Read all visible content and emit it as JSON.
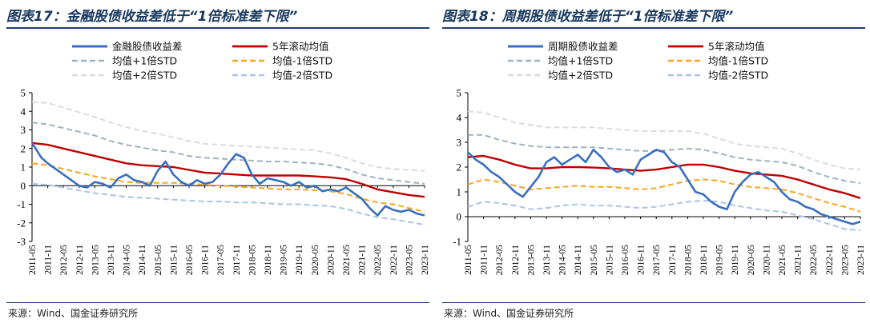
{
  "source_label": "来源：Wind、国金证券研究所",
  "legend_labels": {
    "mean_plus_1std": "均值+1倍STD",
    "mean_minus_1std": "均值-1倍STD",
    "mean_plus_2std": "均值+2倍STD",
    "mean_minus_2std": "均值-2倍STD",
    "rolling_mean": "5年滚动均值"
  },
  "colors": {
    "spread": "#3a6fbf",
    "rolling_mean": "#c00000",
    "plus_1std": "#9fb2c2",
    "minus_1std": "#f5a623",
    "plus_2std": "#dcdcdc",
    "minus_2std": "#a9c4ea"
  },
  "chart_data": [
    {
      "type": "line",
      "title": "图表17：金融股债收益差低于“1倍标准差下限”",
      "spread_name": "金融股债收益差",
      "ylim": [
        -3,
        5
      ],
      "y_ticks": [
        -3,
        -2,
        -1,
        0,
        1,
        2,
        3,
        4,
        5
      ],
      "x_ticks": [
        "2011-05",
        "2011-11",
        "2012-05",
        "2012-11",
        "2013-05",
        "2013-11",
        "2014-05",
        "2014-11",
        "2015-05",
        "2015-11",
        "2016-05",
        "2016-11",
        "2017-05",
        "2017-11",
        "2018-05",
        "2018-11",
        "2019-05",
        "2019-11",
        "2020-05",
        "2020-11",
        "2021-05",
        "2021-11",
        "2022-05",
        "2022-11",
        "2023-05",
        "2023-11"
      ],
      "legend_placement": "top",
      "series": [
        {
          "key": "spread",
          "x": [
            0,
            0.3,
            0.6,
            1,
            1.5,
            2,
            2.5,
            3,
            3.5,
            4,
            4.5,
            5,
            5.5,
            6,
            6.5,
            7,
            7.5,
            8,
            8.5,
            9,
            9.5,
            10,
            10.5,
            11,
            11.5,
            12,
            12.5,
            13,
            13.5,
            14,
            14.5,
            15,
            15.5,
            16,
            16.5,
            17,
            17.5,
            18,
            18.5,
            19,
            19.5,
            20,
            20.5,
            21,
            21.5,
            22,
            22.5,
            23,
            23.5,
            24,
            24.5,
            25
          ],
          "values": [
            2.3,
            1.9,
            1.5,
            1.2,
            0.9,
            0.6,
            0.3,
            0.0,
            -0.1,
            0.2,
            0.1,
            -0.1,
            0.4,
            0.6,
            0.3,
            0.2,
            0.0,
            0.8,
            1.3,
            0.6,
            0.2,
            0.0,
            0.3,
            0.1,
            0.2,
            0.6,
            1.2,
            1.7,
            1.5,
            0.6,
            0.1,
            0.4,
            0.3,
            0.2,
            0.0,
            0.2,
            -0.1,
            0.0,
            -0.3,
            -0.2,
            -0.3,
            -0.1,
            -0.4,
            -0.7,
            -1.2,
            -1.6,
            -1.1,
            -1.3,
            -1.4,
            -1.3,
            -1.5,
            -1.6
          ]
        },
        {
          "key": "rolling_mean",
          "x": [
            0,
            1,
            2,
            3,
            4,
            5,
            6,
            7,
            8,
            9,
            10,
            11,
            12,
            13,
            14,
            15,
            16,
            17,
            18,
            19,
            20,
            21,
            22,
            23,
            24,
            25
          ],
          "values": [
            2.3,
            2.2,
            2.0,
            1.8,
            1.6,
            1.4,
            1.2,
            1.1,
            1.05,
            1.0,
            0.85,
            0.7,
            0.65,
            0.6,
            0.55,
            0.55,
            0.55,
            0.55,
            0.5,
            0.45,
            0.35,
            0.1,
            -0.2,
            -0.35,
            -0.5,
            -0.6
          ]
        },
        {
          "key": "plus_1std",
          "x": [
            0,
            1,
            2,
            3,
            4,
            5,
            6,
            7,
            8,
            9,
            10,
            11,
            12,
            13,
            14,
            15,
            16,
            17,
            18,
            19,
            20,
            21,
            22,
            23,
            24,
            25
          ],
          "values": [
            3.4,
            3.3,
            3.1,
            2.9,
            2.7,
            2.4,
            2.2,
            2.05,
            1.9,
            1.8,
            1.6,
            1.5,
            1.45,
            1.4,
            1.35,
            1.3,
            1.3,
            1.25,
            1.2,
            1.1,
            0.9,
            0.6,
            0.4,
            0.3,
            0.2,
            0.1
          ]
        },
        {
          "key": "minus_1std",
          "x": [
            0,
            1,
            2,
            3,
            4,
            5,
            6,
            7,
            8,
            9,
            10,
            11,
            12,
            13,
            14,
            15,
            16,
            17,
            18,
            19,
            20,
            21,
            22,
            23,
            24,
            25
          ],
          "values": [
            1.2,
            1.1,
            0.9,
            0.7,
            0.5,
            0.35,
            0.2,
            0.15,
            0.15,
            0.15,
            0.1,
            0.05,
            0.0,
            -0.05,
            -0.1,
            -0.15,
            -0.2,
            -0.2,
            -0.25,
            -0.3,
            -0.45,
            -0.7,
            -0.9,
            -1.0,
            -1.2,
            -1.4
          ]
        },
        {
          "key": "plus_2std",
          "x": [
            0,
            1,
            2,
            3,
            4,
            5,
            6,
            7,
            8,
            9,
            10,
            11,
            12,
            13,
            14,
            15,
            16,
            17,
            18,
            19,
            20,
            21,
            22,
            23,
            24,
            25
          ],
          "values": [
            4.5,
            4.45,
            4.2,
            3.95,
            3.7,
            3.4,
            3.15,
            2.95,
            2.8,
            2.6,
            2.4,
            2.25,
            2.2,
            2.15,
            2.1,
            2.05,
            2.0,
            1.95,
            1.9,
            1.75,
            1.5,
            1.2,
            1.0,
            0.9,
            0.85,
            0.8
          ]
        },
        {
          "key": "minus_2std",
          "x": [
            0,
            1,
            2,
            3,
            4,
            5,
            6,
            7,
            8,
            9,
            10,
            11,
            12,
            13,
            14,
            15,
            16,
            17,
            18,
            19,
            20,
            21,
            22,
            23,
            24,
            25
          ],
          "values": [
            0.1,
            0.05,
            -0.1,
            -0.25,
            -0.4,
            -0.5,
            -0.6,
            -0.65,
            -0.7,
            -0.75,
            -0.8,
            -0.85,
            -0.85,
            -0.9,
            -0.9,
            -0.95,
            -1.0,
            -1.0,
            -1.05,
            -1.1,
            -1.25,
            -1.5,
            -1.7,
            -1.8,
            -1.95,
            -2.1
          ]
        }
      ]
    },
    {
      "type": "line",
      "title": "图表18：周期股债收益差低于“1倍标准差下限”",
      "spread_name": "周期股债收益差",
      "ylim": [
        -1,
        5
      ],
      "y_ticks": [
        -1,
        0,
        1,
        2,
        3,
        4,
        5
      ],
      "x_ticks": [
        "2011-05",
        "2011-11",
        "2012-05",
        "2012-11",
        "2013-05",
        "2013-11",
        "2014-05",
        "2014-11",
        "2015-05",
        "2015-11",
        "2016-05",
        "2016-11",
        "2017-05",
        "2017-11",
        "2018-05",
        "2018-11",
        "2019-05",
        "2019-11",
        "2020-05",
        "2020-11",
        "2021-05",
        "2021-11",
        "2022-05",
        "2022-11",
        "2023-05",
        "2023-11"
      ],
      "legend_placement": "top",
      "series": [
        {
          "key": "spread",
          "x": [
            0,
            0.5,
            1,
            1.5,
            2,
            2.5,
            3,
            3.5,
            4,
            4.5,
            5,
            5.5,
            6,
            6.5,
            7,
            7.5,
            8,
            8.5,
            9,
            9.5,
            10,
            10.5,
            11,
            11.5,
            12,
            12.5,
            13,
            13.5,
            14,
            14.5,
            15,
            15.5,
            16,
            16.5,
            17,
            17.5,
            18,
            18.5,
            19,
            19.5,
            20,
            20.5,
            21,
            21.5,
            22,
            22.5,
            23,
            23.5,
            24,
            24.5,
            25
          ],
          "values": [
            2.6,
            2.3,
            2.1,
            1.8,
            1.6,
            1.3,
            1.0,
            0.8,
            1.2,
            1.6,
            2.2,
            2.4,
            2.1,
            2.3,
            2.5,
            2.2,
            2.7,
            2.4,
            2.0,
            1.8,
            1.9,
            1.7,
            2.3,
            2.5,
            2.7,
            2.6,
            2.2,
            2.0,
            1.5,
            1.0,
            0.9,
            0.6,
            0.4,
            0.3,
            1.0,
            1.4,
            1.7,
            1.8,
            1.6,
            1.4,
            1.0,
            0.7,
            0.6,
            0.4,
            0.3,
            0.1,
            0.0,
            -0.1,
            -0.2,
            -0.3,
            -0.2
          ]
        },
        {
          "key": "rolling_mean",
          "x": [
            0,
            1,
            2,
            3,
            4,
            5,
            6,
            7,
            8,
            9,
            10,
            11,
            12,
            13,
            14,
            15,
            16,
            17,
            18,
            19,
            20,
            21,
            22,
            23,
            24,
            25
          ],
          "values": [
            2.4,
            2.45,
            2.3,
            2.1,
            1.95,
            1.95,
            2.0,
            2.0,
            1.98,
            1.95,
            1.9,
            1.85,
            1.9,
            2.0,
            2.1,
            2.1,
            2.0,
            1.85,
            1.75,
            1.7,
            1.65,
            1.5,
            1.3,
            1.1,
            0.95,
            0.75
          ]
        },
        {
          "key": "plus_1std",
          "x": [
            0,
            1,
            2,
            3,
            4,
            5,
            6,
            7,
            8,
            9,
            10,
            11,
            12,
            13,
            14,
            15,
            16,
            17,
            18,
            19,
            20,
            21,
            22,
            23,
            24,
            25
          ],
          "values": [
            3.3,
            3.3,
            3.1,
            2.95,
            2.85,
            2.8,
            2.8,
            2.8,
            2.8,
            2.75,
            2.7,
            2.65,
            2.65,
            2.7,
            2.75,
            2.7,
            2.55,
            2.4,
            2.3,
            2.25,
            2.2,
            2.05,
            1.8,
            1.6,
            1.45,
            1.35
          ]
        },
        {
          "key": "minus_1std",
          "x": [
            0,
            1,
            2,
            3,
            4,
            5,
            6,
            7,
            8,
            9,
            10,
            11,
            12,
            13,
            14,
            15,
            16,
            17,
            18,
            19,
            20,
            21,
            22,
            23,
            24,
            25
          ],
          "values": [
            1.3,
            1.5,
            1.4,
            1.25,
            1.1,
            1.15,
            1.2,
            1.25,
            1.2,
            1.2,
            1.15,
            1.1,
            1.15,
            1.3,
            1.45,
            1.5,
            1.45,
            1.3,
            1.2,
            1.15,
            1.1,
            0.95,
            0.75,
            0.55,
            0.4,
            0.2
          ]
        },
        {
          "key": "plus_2std",
          "x": [
            0,
            1,
            2,
            3,
            4,
            5,
            6,
            7,
            8,
            9,
            10,
            11,
            12,
            13,
            14,
            15,
            16,
            17,
            18,
            19,
            20,
            21,
            22,
            23,
            24,
            25
          ],
          "values": [
            4.25,
            4.2,
            4.0,
            3.8,
            3.7,
            3.6,
            3.6,
            3.6,
            3.6,
            3.55,
            3.5,
            3.45,
            3.45,
            3.45,
            3.45,
            3.35,
            3.15,
            2.95,
            2.85,
            2.8,
            2.75,
            2.55,
            2.3,
            2.1,
            1.95,
            1.9
          ]
        },
        {
          "key": "minus_2std",
          "x": [
            0,
            1,
            2,
            3,
            4,
            5,
            6,
            7,
            8,
            9,
            10,
            11,
            12,
            13,
            14,
            15,
            16,
            17,
            18,
            19,
            20,
            21,
            22,
            23,
            24,
            25
          ],
          "values": [
            0.4,
            0.6,
            0.55,
            0.45,
            0.3,
            0.35,
            0.45,
            0.5,
            0.45,
            0.45,
            0.4,
            0.35,
            0.4,
            0.5,
            0.6,
            0.65,
            0.6,
            0.45,
            0.35,
            0.25,
            0.2,
            0.05,
            -0.1,
            -0.3,
            -0.5,
            -0.55
          ]
        }
      ]
    }
  ]
}
